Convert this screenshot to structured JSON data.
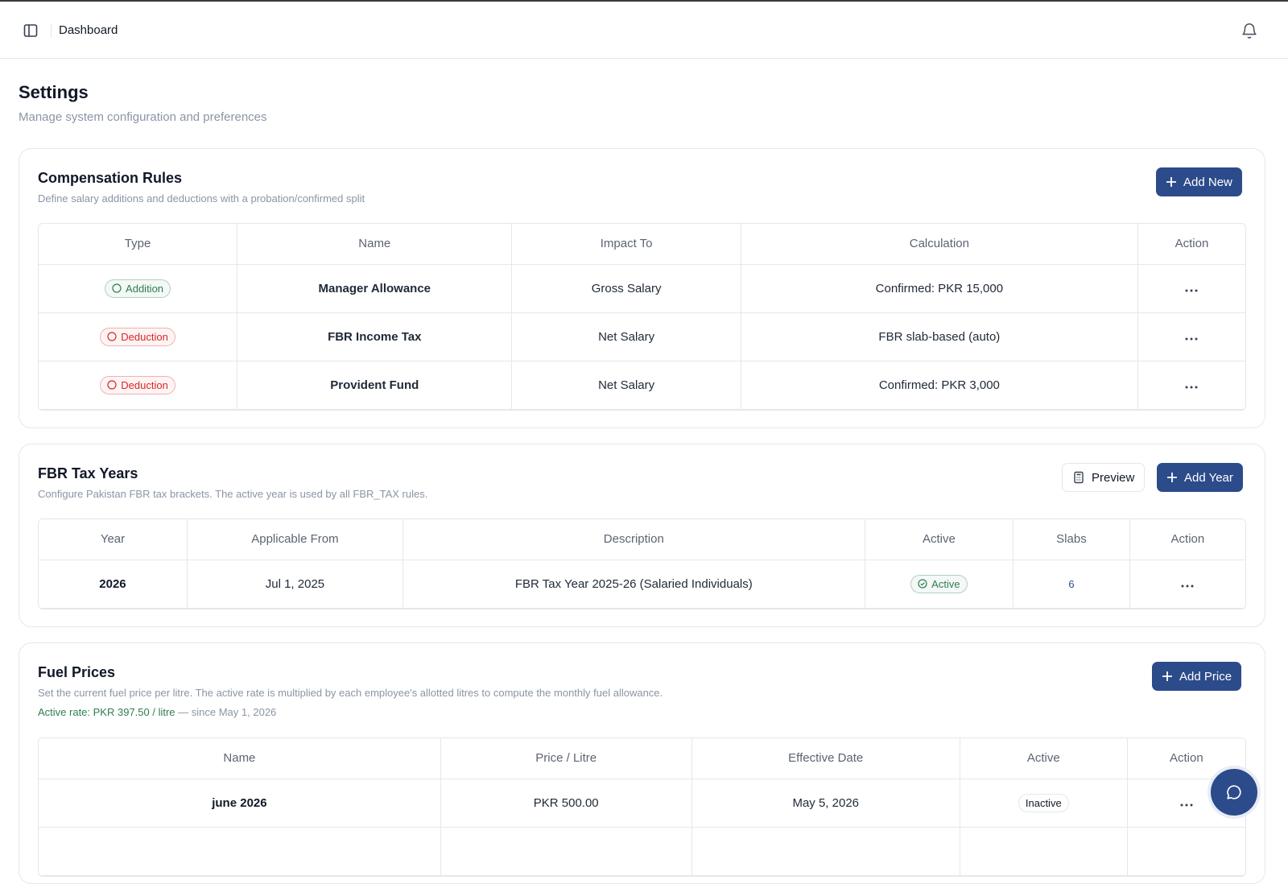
{
  "header": {
    "title": "Dashboard"
  },
  "page": {
    "title": "Settings",
    "subtitle": "Manage system configuration and preferences"
  },
  "compensation": {
    "title": "Compensation Rules",
    "description": "Define salary additions and deductions with a probation/confirmed split",
    "button": "Add New",
    "columns": [
      "Type",
      "Name",
      "Impact To",
      "Calculation",
      "Action"
    ],
    "badge_column": 0,
    "rows": [
      {
        "cells": [
          "Addition",
          "Manager Allowance",
          "Gross Salary",
          "Confirmed: PKR 15,000"
        ],
        "badge_color": "#2f7d4f"
      },
      {
        "cells": [
          "Deduction",
          "FBR Income Tax",
          "Net Salary",
          "FBR slab-based (auto)"
        ],
        "badge_color": "#dc2626"
      },
      {
        "cells": [
          "Deduction",
          "Provident Fund",
          "Net Salary",
          "Confirmed: PKR 3,000"
        ],
        "badge_color": "#dc2626"
      }
    ]
  },
  "tax_years": {
    "title": "FBR Tax Years",
    "description": "Configure Pakistan FBR tax brackets. The active year is used by all FBR_TAX rules.",
    "buttons": [
      "Preview",
      "Add Year"
    ],
    "columns": [
      "Year",
      "Applicable From",
      "Description",
      "Active",
      "Slabs",
      "Action"
    ],
    "badge_column": 3,
    "rows": [
      {
        "cells": [
          "2026",
          "Jul 1, 2025",
          "FBR Tax Year 2025-26 (Salaried Individuals)",
          "Active",
          "6"
        ],
        "badge_color": "#2f7d4f"
      }
    ]
  },
  "fuel": {
    "title": "Fuel Prices",
    "description": "Set the current fuel price per litre. The active rate is multiplied by each employee's allotted litres to compute the monthly fuel allowance.",
    "active_rate": "Active rate: PKR 397.50 / litre",
    "since": "— since May 1, 2026",
    "button": "Add Price",
    "columns": [
      "Name",
      "Price / Litre",
      "Effective Date",
      "Active",
      "Action"
    ],
    "badge_column": 3,
    "rows": [
      {
        "cells": [
          "june 2026",
          "PKR 500.00",
          "May 5, 2026",
          "Inactive"
        ],
        "badge_color": "#111827"
      }
    ]
  }
}
